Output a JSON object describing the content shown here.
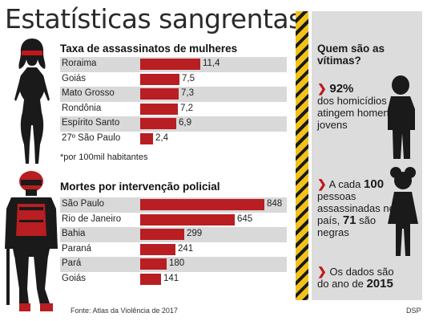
{
  "title": "Estatísticas sangrentas",
  "chart_data": [
    {
      "type": "bar",
      "orientation": "horizontal",
      "title": "Taxa de assassinatos de mulheres",
      "categories": [
        "Roraima",
        "Goiás",
        "Mato Grosso",
        "Rondônia",
        "Espírito Santo",
        "27º São Paulo"
      ],
      "values": [
        11.4,
        7.5,
        7.3,
        7.2,
        6.9,
        2.4
      ],
      "value_labels": [
        "11,4",
        "7,5",
        "7,3",
        "7,2",
        "6,9",
        "2,4"
      ],
      "note": "*por 100mil habitantes",
      "bar_color": "#b81e22"
    },
    {
      "type": "bar",
      "orientation": "horizontal",
      "title": "Mortes por intervenção policial",
      "categories": [
        "São Paulo",
        "Rio de Janeiro",
        "Bahia",
        "Paraná",
        "Pará",
        "Goiás"
      ],
      "values": [
        848,
        645,
        299,
        241,
        180,
        141
      ],
      "value_labels": [
        "848",
        "645",
        "299",
        "241",
        "180",
        "141"
      ],
      "bar_color": "#b81e22"
    }
  ],
  "sidebar": {
    "question": "Quem são as vítimas?",
    "stat1_number": "92%",
    "stat1_text": "dos homicídios atingem homens jovens",
    "stat2_prefix": "A cada",
    "stat2_number": "100",
    "stat2_middle": "pessoas assassinadas no país,",
    "stat2_number2": "71",
    "stat2_suffix": "são negras",
    "stat3_text": "Os dados são do ano de",
    "stat3_year": "2015"
  },
  "footer": {
    "source": "Fonte: Atlas da Violência de 2017",
    "credit": "DSP"
  },
  "colors": {
    "accent": "#b81e22",
    "stripe_yellow": "#f2c21a",
    "panel": "#dcdcdc"
  },
  "icons": [
    "woman-silhouette-icon",
    "police-officer-icon",
    "young-man-silhouette-icon",
    "girl-silhouette-icon",
    "arrow-icon"
  ]
}
